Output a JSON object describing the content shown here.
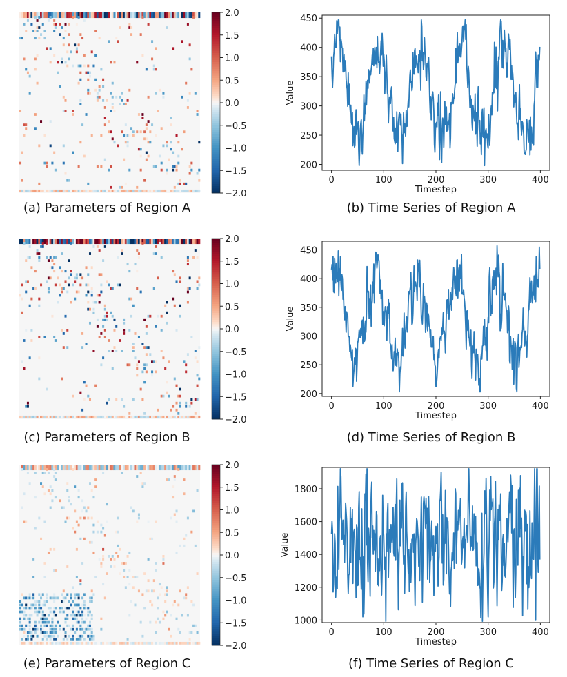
{
  "colors": {
    "line": "#2b7bba",
    "neg_strong": "#1f4e8c",
    "pos_strong": "#b2182b",
    "neutral": "#f5f5f5"
  },
  "colorbar": {
    "ticks": [
      "2.0",
      "1.5",
      "1.0",
      "0.5",
      "0.0",
      "−0.5",
      "−1.0",
      "−1.5",
      "−2.0"
    ],
    "min": -2.0,
    "max": 2.0
  },
  "heatmaps": [
    {
      "caption": "(a) Parameters of Region A",
      "intensity": 0.9,
      "seed": 11,
      "bottom_band": true
    },
    {
      "caption": "(c) Parameters of Region B",
      "intensity": 1.0,
      "seed": 23,
      "bottom_band": true
    },
    {
      "caption": "(e) Parameters of Region C",
      "intensity": 0.35,
      "seed": 37,
      "bottom_band": true
    }
  ],
  "chart_data": [
    {
      "type": "line",
      "caption": "(b) Time Series of Region A",
      "xlabel": "Timestep",
      "ylabel": "Value",
      "xlim": [
        -18,
        418
      ],
      "ylim": [
        190,
        455
      ],
      "xticks": [
        "0",
        "100",
        "200",
        "300",
        "400"
      ],
      "xtick_values": [
        0,
        100,
        200,
        300,
        400
      ],
      "yticks": [
        "200",
        "250",
        "300",
        "350",
        "400",
        "450"
      ],
      "ytick_values": [
        200,
        250,
        300,
        350,
        400,
        450
      ],
      "n_points": 400,
      "mean": 325,
      "amplitude": 80,
      "period": 80,
      "noise": 32,
      "seed": 5
    },
    {
      "type": "line",
      "caption": "(d) Time Series of Region B",
      "xlabel": "Timestep",
      "ylabel": "Value",
      "xlim": [
        -18,
        418
      ],
      "ylim": [
        195,
        465
      ],
      "xticks": [
        "0",
        "100",
        "200",
        "300",
        "400"
      ],
      "xtick_values": [
        0,
        100,
        200,
        300,
        400
      ],
      "yticks": [
        "200",
        "250",
        "300",
        "350",
        "400",
        "450"
      ],
      "ytick_values": [
        200,
        250,
        300,
        350,
        400,
        450
      ],
      "n_points": 400,
      "mean": 330,
      "amplitude": 78,
      "period": 77,
      "noise": 34,
      "seed": 9
    },
    {
      "type": "line",
      "caption": "(f) Time Series of Region C",
      "xlabel": "Timestep",
      "ylabel": "Value",
      "xlim": [
        -18,
        418
      ],
      "ylim": [
        985,
        1930
      ],
      "xticks": [
        "0",
        "100",
        "200",
        "300",
        "400"
      ],
      "xtick_values": [
        0,
        100,
        200,
        300,
        400
      ],
      "yticks": [
        "1000",
        "1200",
        "1400",
        "1600",
        "1800"
      ],
      "ytick_values": [
        1000,
        1200,
        1400,
        1600,
        1800
      ],
      "n_points": 400,
      "mean": 1460,
      "amplitude": 0,
      "period": 80,
      "noise": 260,
      "seed": 17
    }
  ]
}
